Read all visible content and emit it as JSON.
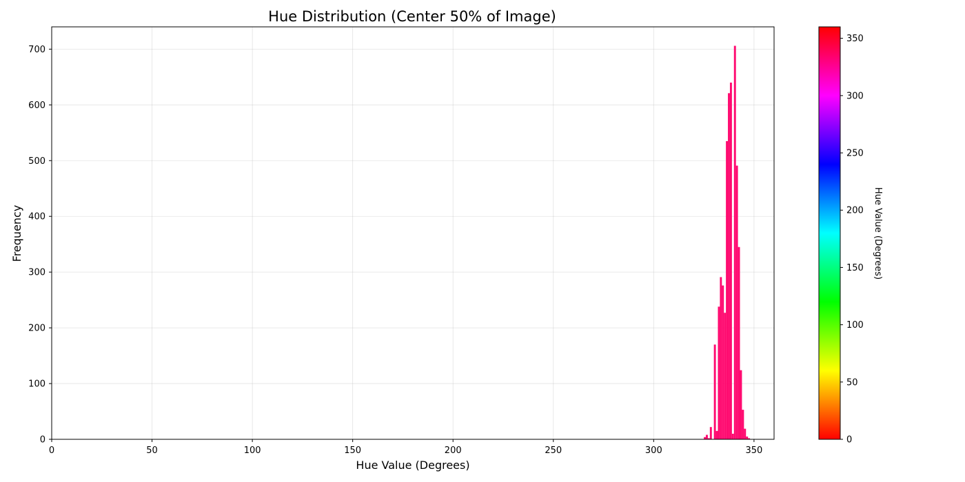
{
  "chart_data": {
    "type": "bar",
    "title": "Hue Distribution (Center 50% of Image)",
    "xlabel": "Hue Value (Degrees)",
    "ylabel": "Frequency",
    "xlim": [
      0,
      360
    ],
    "ylim": [
      0,
      740
    ],
    "grid": true,
    "x_ticks": [
      0,
      50,
      100,
      150,
      200,
      250,
      300,
      350
    ],
    "y_ticks": [
      0,
      100,
      200,
      300,
      400,
      500,
      600,
      700
    ],
    "bin_width": 1,
    "bar_color": "#ff0a70",
    "bins": [
      {
        "x": 325,
        "count": 4
      },
      {
        "x": 326,
        "count": 8
      },
      {
        "x": 327,
        "count": 2
      },
      {
        "x": 328,
        "count": 22
      },
      {
        "x": 329,
        "count": 0
      },
      {
        "x": 330,
        "count": 170
      },
      {
        "x": 331,
        "count": 15
      },
      {
        "x": 332,
        "count": 238
      },
      {
        "x": 333,
        "count": 291
      },
      {
        "x": 334,
        "count": 276
      },
      {
        "x": 335,
        "count": 227
      },
      {
        "x": 336,
        "count": 535
      },
      {
        "x": 337,
        "count": 621
      },
      {
        "x": 338,
        "count": 640
      },
      {
        "x": 339,
        "count": 10
      },
      {
        "x": 340,
        "count": 706
      },
      {
        "x": 341,
        "count": 491
      },
      {
        "x": 342,
        "count": 345
      },
      {
        "x": 343,
        "count": 124
      },
      {
        "x": 344,
        "count": 53
      },
      {
        "x": 345,
        "count": 19
      },
      {
        "x": 346,
        "count": 5
      },
      {
        "x": 347,
        "count": 2
      }
    ],
    "colorbar": {
      "label": "Hue Value (Degrees)",
      "range": [
        0,
        360
      ],
      "ticks": [
        0,
        50,
        100,
        150,
        200,
        250,
        300,
        350
      ],
      "colormap": "hsv"
    }
  }
}
